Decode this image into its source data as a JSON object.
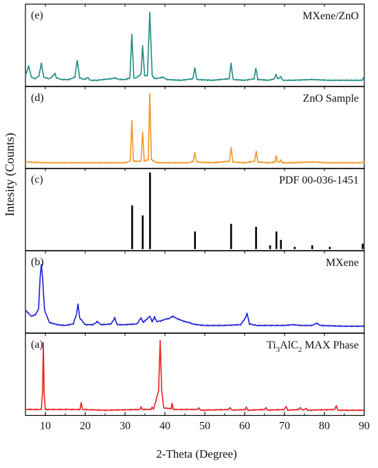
{
  "chart_data": {
    "type": "line",
    "xlabel": "2-Theta (Degree)",
    "ylabel": "Intesity (Counts)",
    "xlim": [
      5,
      90
    ],
    "x_ticks": [
      10,
      20,
      30,
      40,
      50,
      60,
      70,
      80,
      90
    ],
    "grid": false,
    "panels": [
      {
        "id": "e",
        "letter": "(e)",
        "label": "MXene/ZnO",
        "color": "#1a8a80",
        "style": "profile",
        "baseline": 0.05,
        "points": [
          [
            5,
            0.12
          ],
          [
            5.8,
            0.25
          ],
          [
            6.5,
            0.1
          ],
          [
            7.5,
            0.08
          ],
          [
            8.4,
            0.12
          ],
          [
            9.0,
            0.28
          ],
          [
            9.6,
            0.1
          ],
          [
            11,
            0.08
          ],
          [
            12.0,
            0.12
          ],
          [
            12.4,
            0.15
          ],
          [
            12.8,
            0.09
          ],
          [
            14,
            0.07
          ],
          [
            16,
            0.07
          ],
          [
            17.4,
            0.1
          ],
          [
            18.0,
            0.32
          ],
          [
            18.6,
            0.09
          ],
          [
            20,
            0.07
          ],
          [
            20.6,
            0.1
          ],
          [
            21.2,
            0.06
          ],
          [
            23,
            0.06
          ],
          [
            24.5,
            0.07
          ],
          [
            26.5,
            0.08
          ],
          [
            27.5,
            0.09
          ],
          [
            28.5,
            0.07
          ],
          [
            30,
            0.07
          ],
          [
            31.2,
            0.09
          ],
          [
            31.7,
            0.66
          ],
          [
            32.2,
            0.09
          ],
          [
            33,
            0.1
          ],
          [
            34.0,
            0.14
          ],
          [
            34.4,
            0.51
          ],
          [
            34.9,
            0.12
          ],
          [
            35.6,
            0.12
          ],
          [
            36.2,
            0.95
          ],
          [
            36.8,
            0.12
          ],
          [
            37.5,
            0.08
          ],
          [
            39.5,
            0.1
          ],
          [
            40.5,
            0.07
          ],
          [
            44,
            0.06
          ],
          [
            47.0,
            0.08
          ],
          [
            47.5,
            0.22
          ],
          [
            48.0,
            0.07
          ],
          [
            52,
            0.06
          ],
          [
            56.1,
            0.08
          ],
          [
            56.6,
            0.28
          ],
          [
            57.1,
            0.07
          ],
          [
            60,
            0.06
          ],
          [
            62.4,
            0.08
          ],
          [
            62.8,
            0.22
          ],
          [
            63.3,
            0.07
          ],
          [
            66,
            0.06
          ],
          [
            67.5,
            0.08
          ],
          [
            67.9,
            0.14
          ],
          [
            68.3,
            0.08
          ],
          [
            68.8,
            0.09
          ],
          [
            69.1,
            0.11
          ],
          [
            69.5,
            0.06
          ],
          [
            72,
            0.06
          ],
          [
            77,
            0.07
          ],
          [
            81,
            0.06
          ],
          [
            89.4,
            0.06
          ],
          [
            89.8,
            0.09
          ],
          [
            90,
            0.06
          ]
        ]
      },
      {
        "id": "d",
        "letter": "(d)",
        "label": "ZnO Sample",
        "color": "#f2921f",
        "style": "profile",
        "baseline": 0.05,
        "points": [
          [
            5,
            0.07
          ],
          [
            10,
            0.06
          ],
          [
            20,
            0.06
          ],
          [
            30,
            0.06
          ],
          [
            31.3,
            0.08
          ],
          [
            31.7,
            0.62
          ],
          [
            32.1,
            0.08
          ],
          [
            34.0,
            0.08
          ],
          [
            34.4,
            0.46
          ],
          [
            34.8,
            0.08
          ],
          [
            35.8,
            0.1
          ],
          [
            36.2,
            0.96
          ],
          [
            36.6,
            0.1
          ],
          [
            38,
            0.06
          ],
          [
            46,
            0.06
          ],
          [
            47.1,
            0.08
          ],
          [
            47.5,
            0.19
          ],
          [
            47.9,
            0.07
          ],
          [
            52,
            0.06
          ],
          [
            56.2,
            0.08
          ],
          [
            56.6,
            0.26
          ],
          [
            57.0,
            0.07
          ],
          [
            60,
            0.06
          ],
          [
            62.5,
            0.08
          ],
          [
            62.9,
            0.21
          ],
          [
            63.3,
            0.07
          ],
          [
            66,
            0.06
          ],
          [
            67.6,
            0.07
          ],
          [
            67.9,
            0.15
          ],
          [
            68.2,
            0.07
          ],
          [
            68.7,
            0.07
          ],
          [
            69.1,
            0.1
          ],
          [
            69.4,
            0.06
          ],
          [
            72,
            0.06
          ],
          [
            77,
            0.07
          ],
          [
            81,
            0.06
          ],
          [
            89.4,
            0.06
          ],
          [
            89.8,
            0.08
          ],
          [
            90,
            0.06
          ]
        ]
      },
      {
        "id": "c",
        "letter": "(c)",
        "label": "PDF 00-036-1451",
        "color": "#000000",
        "style": "sticks",
        "baseline": 0.02,
        "points": [
          [
            31.77,
            0.57
          ],
          [
            34.42,
            0.44
          ],
          [
            36.25,
            1.0
          ],
          [
            47.54,
            0.23
          ],
          [
            56.6,
            0.33
          ],
          [
            62.86,
            0.29
          ],
          [
            66.38,
            0.05
          ],
          [
            67.96,
            0.23
          ],
          [
            69.1,
            0.12
          ],
          [
            72.56,
            0.03
          ],
          [
            76.95,
            0.05
          ],
          [
            81.37,
            0.03
          ],
          [
            89.6,
            0.07
          ]
        ]
      },
      {
        "id": "b",
        "letter": "(b)",
        "label": "MXene",
        "color": "#1818d8",
        "style": "profile",
        "baseline": 0.05,
        "points": [
          [
            5,
            0.28
          ],
          [
            6.5,
            0.2
          ],
          [
            7.5,
            0.22
          ],
          [
            8.3,
            0.3
          ],
          [
            8.7,
            0.72
          ],
          [
            9.0,
            0.88
          ],
          [
            9.3,
            0.7
          ],
          [
            9.8,
            0.28
          ],
          [
            11,
            0.12
          ],
          [
            13,
            0.09
          ],
          [
            15,
            0.08
          ],
          [
            17,
            0.1
          ],
          [
            17.8,
            0.22
          ],
          [
            18.2,
            0.36
          ],
          [
            18.6,
            0.18
          ],
          [
            20,
            0.09
          ],
          [
            22,
            0.09
          ],
          [
            23,
            0.13
          ],
          [
            24,
            0.09
          ],
          [
            26.5,
            0.1
          ],
          [
            27.4,
            0.18
          ],
          [
            28,
            0.09
          ],
          [
            30,
            0.09
          ],
          [
            33,
            0.1
          ],
          [
            34,
            0.18
          ],
          [
            34.5,
            0.12
          ],
          [
            35.2,
            0.15
          ],
          [
            36.2,
            0.2
          ],
          [
            36.8,
            0.13
          ],
          [
            37.4,
            0.19
          ],
          [
            38,
            0.13
          ],
          [
            39,
            0.14
          ],
          [
            40,
            0.16
          ],
          [
            41,
            0.17
          ],
          [
            42,
            0.2
          ],
          [
            43,
            0.17
          ],
          [
            44,
            0.15
          ],
          [
            45,
            0.13
          ],
          [
            46,
            0.12
          ],
          [
            47,
            0.1
          ],
          [
            48,
            0.09
          ],
          [
            50,
            0.08
          ],
          [
            55,
            0.08
          ],
          [
            59,
            0.09
          ],
          [
            60.2,
            0.18
          ],
          [
            60.6,
            0.24
          ],
          [
            61.2,
            0.1
          ],
          [
            63,
            0.08
          ],
          [
            66,
            0.08
          ],
          [
            70,
            0.08
          ],
          [
            72,
            0.09
          ],
          [
            74,
            0.08
          ],
          [
            77,
            0.08
          ],
          [
            78,
            0.11
          ],
          [
            79,
            0.08
          ],
          [
            85,
            0.07
          ],
          [
            90,
            0.07
          ]
        ]
      },
      {
        "id": "a",
        "letter": "(a)",
        "label": "Ti₃AlC₂ MAX Phase",
        "label_parts": [
          "Ti",
          "3",
          "AlC",
          "2",
          " MAX Phase"
        ],
        "color": "#ee1c1c",
        "style": "profile",
        "baseline": 0.05,
        "points": [
          [
            5,
            0.06
          ],
          [
            9.0,
            0.06
          ],
          [
            9.3,
            0.3
          ],
          [
            9.5,
            0.93
          ],
          [
            9.7,
            0.25
          ],
          [
            10.0,
            0.06
          ],
          [
            18.7,
            0.06
          ],
          [
            19.0,
            0.15
          ],
          [
            19.3,
            0.06
          ],
          [
            25,
            0.05
          ],
          [
            33.7,
            0.06
          ],
          [
            34.0,
            0.1
          ],
          [
            34.3,
            0.06
          ],
          [
            36.5,
            0.06
          ],
          [
            36.8,
            0.09
          ],
          [
            37.1,
            0.06
          ],
          [
            38.4,
            0.3
          ],
          [
            38.8,
            0.96
          ],
          [
            39.2,
            0.3
          ],
          [
            39.7,
            0.08
          ],
          [
            41.6,
            0.07
          ],
          [
            41.8,
            0.15
          ],
          [
            42.1,
            0.06
          ],
          [
            48,
            0.06
          ],
          [
            48.6,
            0.08
          ],
          [
            49,
            0.05
          ],
          [
            56,
            0.06
          ],
          [
            56.4,
            0.09
          ],
          [
            56.8,
            0.05
          ],
          [
            60.1,
            0.06
          ],
          [
            60.4,
            0.09
          ],
          [
            60.8,
            0.05
          ],
          [
            65,
            0.06
          ],
          [
            65.4,
            0.08
          ],
          [
            65.8,
            0.05
          ],
          [
            70,
            0.06
          ],
          [
            70.4,
            0.1
          ],
          [
            70.8,
            0.05
          ],
          [
            73.6,
            0.06
          ],
          [
            74.0,
            0.09
          ],
          [
            74.4,
            0.05
          ],
          [
            75.2,
            0.06
          ],
          [
            75.5,
            0.08
          ],
          [
            75.8,
            0.05
          ],
          [
            82.6,
            0.06
          ],
          [
            83.0,
            0.11
          ],
          [
            83.4,
            0.05
          ],
          [
            90,
            0.05
          ]
        ]
      }
    ]
  }
}
